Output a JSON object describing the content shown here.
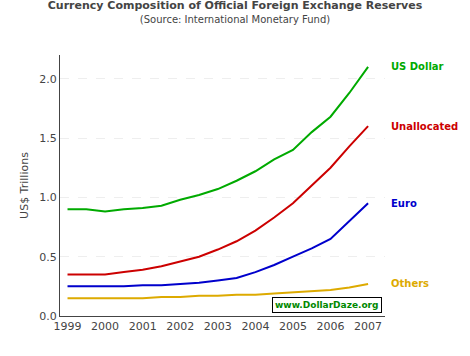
{
  "chart_data": {
    "type": "line",
    "title": "Currency Composition of Official Foreign Exchange Reserves",
    "subtitle": "(Source: International Monetary Fund)",
    "ylabel": "US$ Trillions",
    "annotations": [
      "www.DollarDaze.org"
    ],
    "x": [
      1999,
      1999.5,
      2000,
      2000.5,
      2001,
      2001.5,
      2002,
      2002.5,
      2003,
      2003.5,
      2004,
      2004.5,
      2005,
      2005.5,
      2006,
      2006.5,
      2007
    ],
    "series": [
      {
        "name": "US Dollar",
        "color": "#00aa00",
        "values": [
          0.9,
          0.9,
          0.88,
          0.9,
          0.91,
          0.93,
          0.98,
          1.02,
          1.07,
          1.14,
          1.22,
          1.32,
          1.4,
          1.55,
          1.68,
          1.88,
          2.1
        ]
      },
      {
        "name": "Unallocated",
        "color": "#cc0000",
        "values": [
          0.35,
          0.35,
          0.35,
          0.37,
          0.39,
          0.42,
          0.46,
          0.5,
          0.56,
          0.63,
          0.72,
          0.83,
          0.95,
          1.1,
          1.25,
          1.43,
          1.6
        ]
      },
      {
        "name": "Euro",
        "color": "#0000cc",
        "values": [
          0.25,
          0.25,
          0.25,
          0.25,
          0.26,
          0.26,
          0.27,
          0.28,
          0.3,
          0.32,
          0.37,
          0.43,
          0.5,
          0.57,
          0.65,
          0.8,
          0.95
        ]
      },
      {
        "name": "Others",
        "color": "#ddaa00",
        "values": [
          0.15,
          0.15,
          0.15,
          0.15,
          0.15,
          0.16,
          0.16,
          0.17,
          0.17,
          0.18,
          0.18,
          0.19,
          0.2,
          0.21,
          0.22,
          0.24,
          0.27
        ]
      }
    ],
    "xlim": [
      1998.8,
      2007.45
    ],
    "xticks": [
      1999,
      2000,
      2001,
      2002,
      2003,
      2004,
      2005,
      2006,
      2007
    ],
    "ylim": [
      0.0,
      2.2
    ],
    "yticks": [
      {
        "value": 0.0,
        "label": "0.0"
      },
      {
        "value": 0.5,
        "label": "0.5"
      },
      {
        "value": 1.0,
        "label": "1.0"
      },
      {
        "value": 1.5,
        "label": "1.5"
      },
      {
        "value": 2.0,
        "label": "2.0"
      }
    ],
    "grid": true
  }
}
